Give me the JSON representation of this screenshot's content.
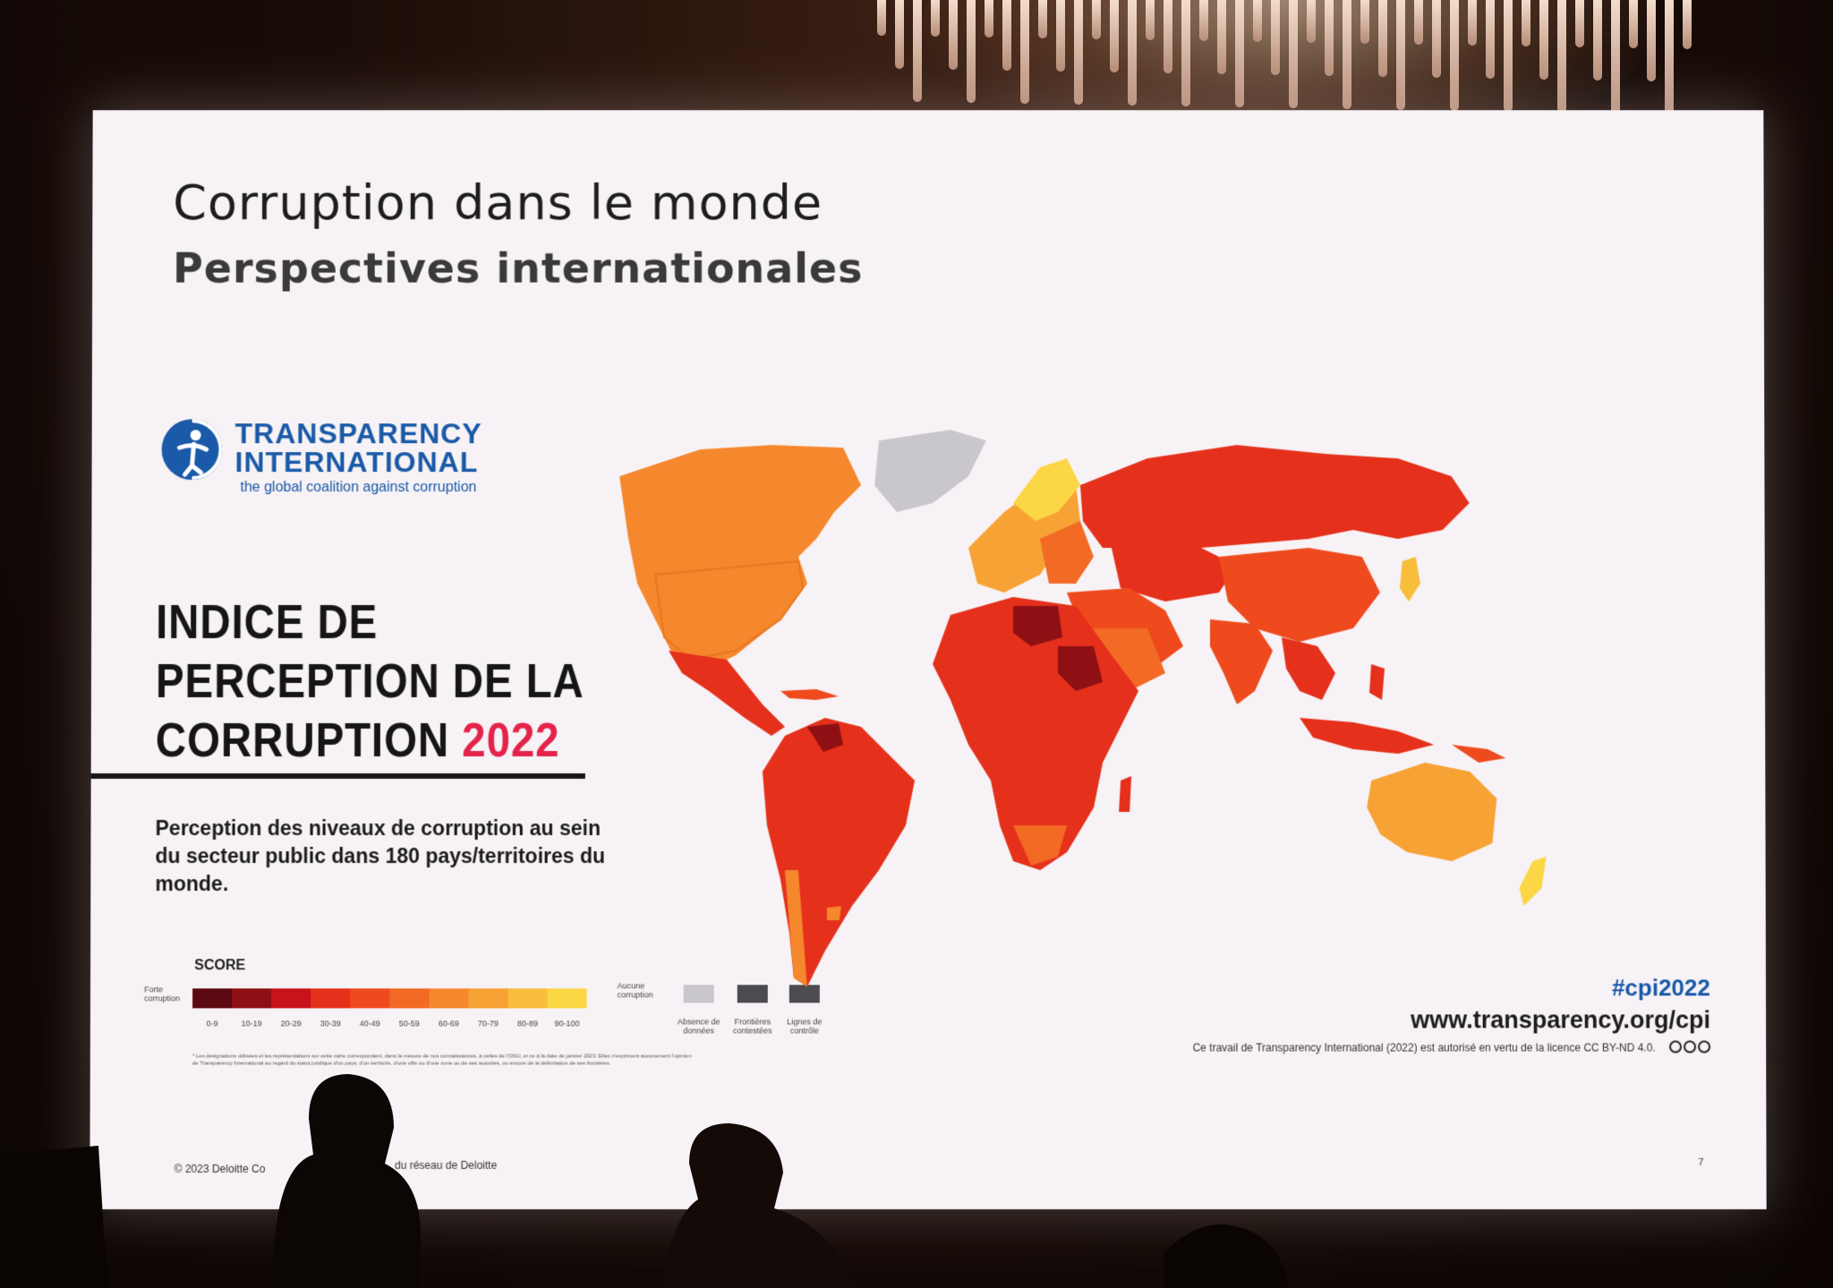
{
  "slide": {
    "title": "Corruption dans le monde",
    "subtitle": "Perspectives internationales",
    "logo": {
      "name_line1": "TRANSPARENCY",
      "name_line2": "INTERNATIONAL",
      "tagline": "the global coalition against corruption",
      "icon": "globe-figure-icon",
      "color": "#1a5aa8"
    },
    "index_title": {
      "line1": "INDICE DE",
      "line2": "PERCEPTION DE LA",
      "line3": "CORRUPTION",
      "year": "2022",
      "year_color": "#e4234b"
    },
    "description": "Perception des niveaux de corruption au sein du secteur public dans 180 pays/territoires du monde.",
    "legend": {
      "label": "SCORE",
      "low_label": "Forte corruption",
      "high_label": "Aucune corruption",
      "colors": [
        "#5a0a10",
        "#8e0f14",
        "#c8131a",
        "#e5301b",
        "#ee4a1d",
        "#f26a24",
        "#f5872c",
        "#f7a234",
        "#f9bd3c",
        "#fbd645"
      ],
      "ranges": [
        "0-9",
        "10-19",
        "20-29",
        "30-39",
        "40-49",
        "50-59",
        "60-69",
        "70-79",
        "80-89",
        "90-100"
      ],
      "extras": [
        {
          "label": "Absence de données",
          "color": "#c9c6cc"
        },
        {
          "label": "Frontières contestées",
          "color": "#4b4b50"
        },
        {
          "label": "Lignes de contrôle",
          "color": "#4b4b50"
        }
      ],
      "note": "* Les désignations utilisées et les représentations sur cette carte correspondent, dans la mesure de nos connaissances, à celles de l'ONU, et ce à la date de janvier 2023. Elles n'expriment aucunement l'opinion de Transparency International au regard du statut juridique d'un pays, d'un territoire, d'une ville ou d'une zone ou de ses autorités, ou encore de la délimitation de ses frontières."
    },
    "hashtag": "#cpi2022",
    "website": "www.transparency.org/cpi",
    "license": "Ce travail de Transparency International (2022) est autorisé en vertu de la licence CC BY-ND 4.0.",
    "copyright_left": "© 2023 Deloitte Co",
    "copyright_right": "du réseau de Deloitte",
    "page_number": "7"
  }
}
